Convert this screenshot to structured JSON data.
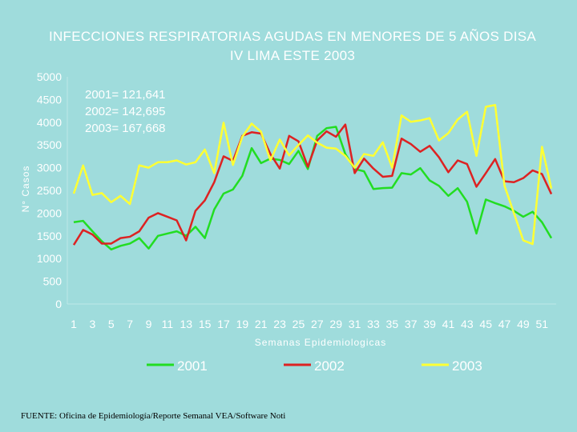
{
  "chart_data": {
    "type": "line",
    "title": "INFECCIONES RESPIRATORIAS AGUDAS EN MENORES DE 5 AÑOS DISA IV LIMA ESTE 2003",
    "xlabel": "Semanas Epidemiologicas",
    "ylabel": "N° Casos",
    "ylim": [
      0,
      5000
    ],
    "xlim": [
      1,
      52
    ],
    "y_ticks": [
      "0",
      "500",
      "1000",
      "1500",
      "2000",
      "2500",
      "3000",
      "3500",
      "4000",
      "4500",
      "5000"
    ],
    "x_ticks": [
      "1",
      "3",
      "5",
      "7",
      "9",
      "11",
      "13",
      "15",
      "17",
      "19",
      "21",
      "23",
      "25",
      "27",
      "29",
      "31",
      "33",
      "35",
      "37",
      "39",
      "41",
      "43",
      "45",
      "47",
      "49",
      "51"
    ],
    "x": [
      1,
      2,
      3,
      4,
      5,
      6,
      7,
      8,
      9,
      10,
      11,
      12,
      13,
      14,
      15,
      16,
      17,
      18,
      19,
      20,
      21,
      22,
      23,
      24,
      25,
      26,
      27,
      28,
      29,
      30,
      31,
      32,
      33,
      34,
      35,
      36,
      37,
      38,
      39,
      40,
      41,
      42,
      43,
      44,
      45,
      46,
      47,
      48,
      49,
      50,
      51,
      52
    ],
    "annotations": [
      "2001= 121,641",
      "2002= 142,695",
      "2003= 167,668"
    ],
    "legend_position": "bottom",
    "grid": false,
    "series": [
      {
        "name": "2001",
        "color": "#22dd22",
        "values": [
          1800,
          1830,
          1600,
          1380,
          1200,
          1280,
          1330,
          1450,
          1220,
          1500,
          1550,
          1600,
          1500,
          1700,
          1450,
          2080,
          2430,
          2520,
          2820,
          3430,
          3100,
          3200,
          3170,
          3080,
          3370,
          2970,
          3700,
          3870,
          3900,
          3300,
          2970,
          2920,
          2530,
          2550,
          2560,
          2880,
          2850,
          2990,
          2720,
          2600,
          2380,
          2550,
          2250,
          1550,
          2300,
          2220,
          2150,
          2050,
          1920,
          2030,
          1800,
          1450
        ]
      },
      {
        "name": "2002",
        "color": "#dd2222",
        "values": [
          1300,
          1630,
          1530,
          1330,
          1330,
          1450,
          1480,
          1600,
          1900,
          2000,
          1920,
          1840,
          1400,
          2050,
          2280,
          2680,
          3250,
          3150,
          3700,
          3780,
          3750,
          3300,
          2980,
          3700,
          3580,
          3020,
          3600,
          3800,
          3680,
          3950,
          2880,
          3200,
          2980,
          2800,
          2820,
          3640,
          3520,
          3350,
          3480,
          3230,
          2900,
          3160,
          3080,
          2580,
          2880,
          3190,
          2700,
          2680,
          2770,
          2940,
          2860,
          2420
        ]
      },
      {
        "name": "2003",
        "color": "#ffff33",
        "values": [
          2430,
          3050,
          2400,
          2440,
          2240,
          2380,
          2200,
          3050,
          3000,
          3120,
          3120,
          3160,
          3070,
          3120,
          3400,
          2880,
          3990,
          3060,
          3680,
          3970,
          3790,
          3160,
          3620,
          3270,
          3500,
          3710,
          3550,
          3440,
          3420,
          3260,
          3000,
          3300,
          3260,
          3560,
          3000,
          4150,
          4010,
          4040,
          4090,
          3600,
          3760,
          4060,
          4230,
          3260,
          4340,
          4380,
          2600,
          2000,
          1400,
          1320,
          3460,
          2540
        ]
      }
    ]
  },
  "source_note": "FUENTE: Oficina de Epidemiología/Reporte Semanal VEA/Software Noti"
}
